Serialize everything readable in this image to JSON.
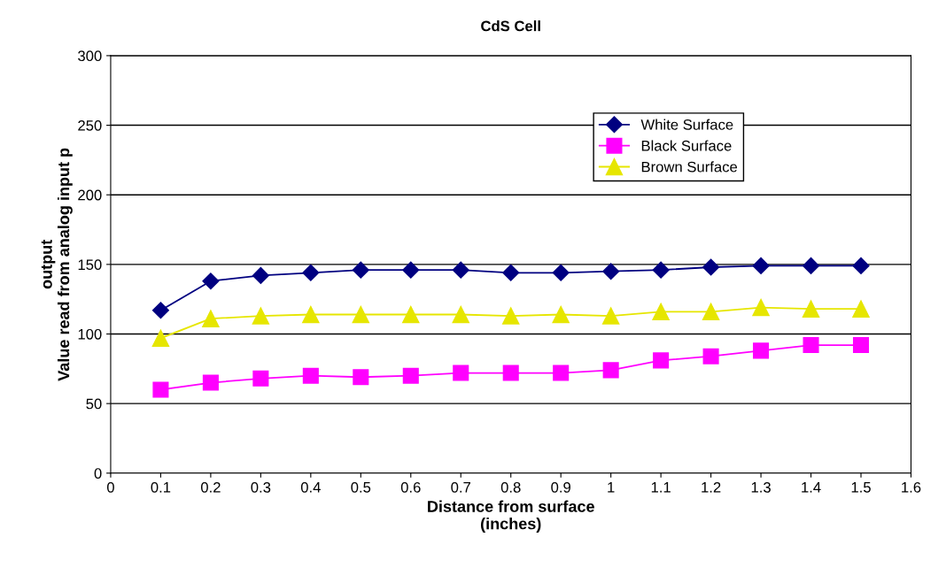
{
  "chart_data": {
    "type": "line",
    "title": "CdS Cell",
    "xlabel": "Distance from surface\n(inches)",
    "ylabel": "output\nValue read from analog input p",
    "x": [
      0.1,
      0.2,
      0.3,
      0.4,
      0.5,
      0.6,
      0.7,
      0.8,
      0.9,
      1.0,
      1.1,
      1.2,
      1.3,
      1.4,
      1.5
    ],
    "series": [
      {
        "name": "White Surface",
        "color": "#000080",
        "marker": "diamond",
        "values": [
          117,
          138,
          142,
          144,
          146,
          146,
          146,
          144,
          144,
          145,
          146,
          148,
          149,
          149,
          149
        ]
      },
      {
        "name": "Black Surface",
        "color": "#ff00ff",
        "marker": "square",
        "values": [
          60,
          65,
          68,
          70,
          69,
          70,
          72,
          72,
          72,
          74,
          81,
          84,
          88,
          92,
          92
        ]
      },
      {
        "name": "Brown Surface",
        "color": "#e6e600",
        "marker": "triangle",
        "values": [
          97,
          111,
          113,
          114,
          114,
          114,
          114,
          113,
          114,
          113,
          116,
          116,
          119,
          118,
          118
        ]
      }
    ],
    "xlim": [
      0,
      1.6
    ],
    "xticks": [
      0,
      0.1,
      0.2,
      0.3,
      0.4,
      0.5,
      0.6,
      0.7,
      0.8,
      0.9,
      {
        "value": 1.0,
        "label": "1"
      },
      1.1,
      1.2,
      1.3,
      1.4,
      1.5,
      1.6
    ],
    "ylim": [
      0,
      300
    ],
    "yticks": [
      0,
      50,
      100,
      150,
      200,
      250,
      300
    ],
    "grid": "y",
    "legend": "top right",
    "line_style": "solid"
  }
}
